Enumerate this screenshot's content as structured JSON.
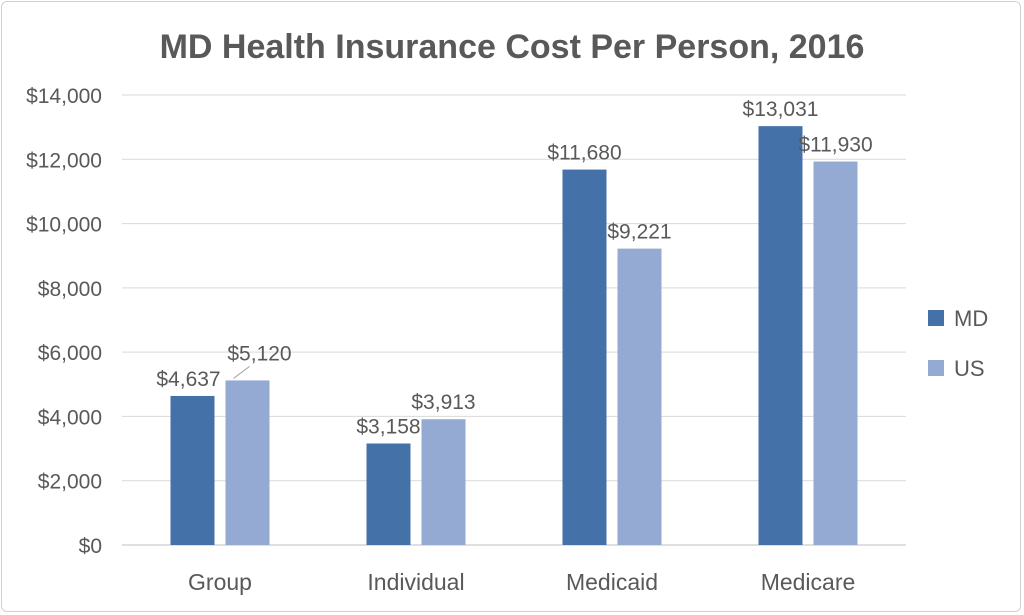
{
  "chart_data": {
    "type": "bar",
    "title": "MD Health Insurance Cost Per Person, 2016",
    "xlabel": "",
    "ylabel": "",
    "categories": [
      "Group",
      "Individual",
      "Medicaid",
      "Medicare"
    ],
    "series": [
      {
        "name": "MD",
        "values": [
          4637,
          3158,
          11680,
          13031
        ],
        "labels": [
          "$4,637",
          "$3,158",
          "$11,680",
          "$13,031"
        ],
        "color": "#4472A8"
      },
      {
        "name": "US",
        "values": [
          5120,
          3913,
          9221,
          11930
        ],
        "labels": [
          "$5,120",
          "$3,913",
          "$9,221",
          "$11,930"
        ],
        "color": "#95AAD3"
      }
    ],
    "ylim": [
      0,
      14000
    ],
    "yticks": [
      0,
      2000,
      4000,
      6000,
      8000,
      10000,
      12000,
      14000
    ],
    "ytick_labels": [
      "$0",
      "$2,000",
      "$4,000",
      "$6,000",
      "$8,000",
      "$10,000",
      "$12,000",
      "$14,000"
    ],
    "grid": true,
    "legend": "right"
  }
}
